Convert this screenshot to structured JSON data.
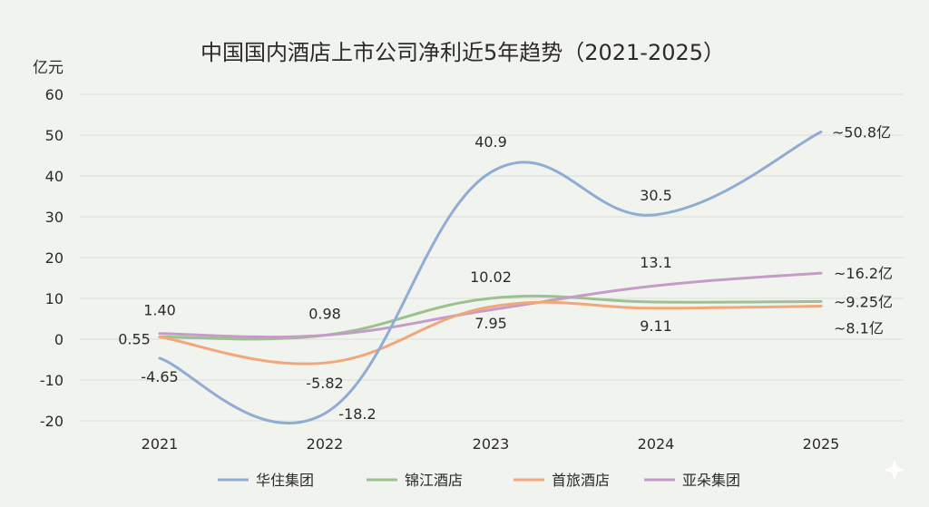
{
  "chart_data": {
    "type": "line",
    "title": "中国国内酒店上市公司净利近5年趋势（2021-2025）",
    "unit_label": "亿元",
    "x": [
      "2021",
      "2022",
      "2023",
      "2024",
      "2025"
    ],
    "ylim": [
      -20,
      60
    ],
    "yticks": [
      60,
      50,
      40,
      30,
      20,
      10,
      0,
      -10,
      -20
    ],
    "grid": true,
    "legend_position": "bottom",
    "series": [
      {
        "name": "华住集团",
        "color": "#8fadd2",
        "values": [
          -4.65,
          -18.2,
          40.9,
          30.5,
          50.8
        ],
        "labels": [
          "-4.65",
          "-18.2",
          "40.9",
          "30.5",
          "~50.8亿"
        ]
      },
      {
        "name": "锦江酒店",
        "color": "#9cc08e",
        "values": [
          0.55,
          0.98,
          10.02,
          9.11,
          9.25
        ],
        "labels": [
          "0.55",
          "0.98",
          "10.02",
          "9.11",
          "~9.25亿"
        ]
      },
      {
        "name": "首旅酒店",
        "color": "#f0a87a",
        "values": [
          0.55,
          -5.82,
          7.95,
          7.6,
          8.1
        ],
        "labels": [
          "",
          "-5.82",
          "7.95",
          "",
          "~8.1亿"
        ]
      },
      {
        "name": "亚朵集团",
        "color": "#c49cc6",
        "values": [
          1.4,
          0.98,
          7.2,
          13.1,
          16.2
        ],
        "labels": [
          "1.40",
          "",
          "",
          "13.1",
          "~16.2亿"
        ]
      }
    ]
  }
}
